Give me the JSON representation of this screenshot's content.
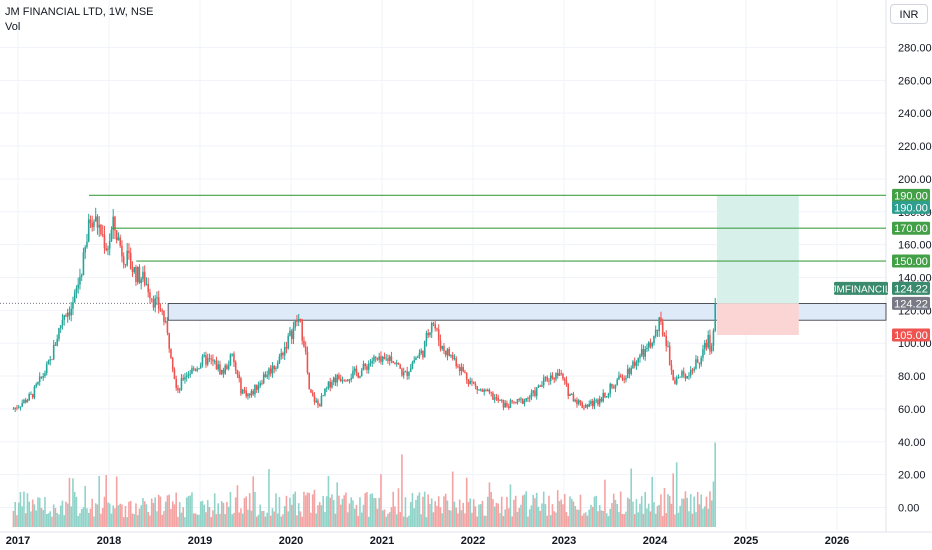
{
  "header": {
    "title": "JM FINANCIAL LTD, 1W, NSE",
    "subtitle": "Vol"
  },
  "currency_button": "INR",
  "colors": {
    "up": "#26a69a",
    "down": "#ef5350",
    "level_line": "#43a047",
    "zone_fill": "#dfeaf9",
    "target_fill": "#d7f0ea",
    "stop_fill": "#fbd4d4",
    "price_tag": "#3a8a6e"
  },
  "chart_data": {
    "type": "candlestick",
    "title": "JM FINANCIAL LTD, 1W, NSE",
    "xlabel": "",
    "ylabel": "",
    "x_ticks": [
      "2017",
      "2018",
      "2019",
      "2020",
      "2021",
      "2022",
      "2023",
      "2024",
      "2025",
      "2026"
    ],
    "y_ticks": [
      "0.00",
      "20.00",
      "40.00",
      "60.00",
      "80.00",
      "100.00",
      "120.00",
      "140.00",
      "160.00",
      "180.00",
      "200.00",
      "220.00",
      "240.00",
      "260.00",
      "280.00"
    ],
    "ylim": [
      -14,
      290
    ],
    "price_path": [
      [
        2016.95,
        60
      ],
      [
        2017.15,
        68
      ],
      [
        2017.35,
        88
      ],
      [
        2017.5,
        118
      ],
      [
        2017.6,
        122
      ],
      [
        2017.72,
        150
      ],
      [
        2017.8,
        178
      ],
      [
        2017.88,
        172
      ],
      [
        2017.98,
        158
      ],
      [
        2018.05,
        172
      ],
      [
        2018.15,
        155
      ],
      [
        2018.3,
        142
      ],
      [
        2018.4,
        138
      ],
      [
        2018.5,
        125
      ],
      [
        2018.58,
        120
      ],
      [
        2018.68,
        95
      ],
      [
        2018.75,
        68
      ],
      [
        2018.82,
        80
      ],
      [
        2018.95,
        85
      ],
      [
        2019.05,
        90
      ],
      [
        2019.15,
        88
      ],
      [
        2019.25,
        82
      ],
      [
        2019.35,
        92
      ],
      [
        2019.45,
        72
      ],
      [
        2019.55,
        68
      ],
      [
        2019.7,
        80
      ],
      [
        2019.85,
        88
      ],
      [
        2019.95,
        100
      ],
      [
        2020.08,
        115
      ],
      [
        2020.15,
        100
      ],
      [
        2020.2,
        70
      ],
      [
        2020.3,
        62
      ],
      [
        2020.45,
        78
      ],
      [
        2020.6,
        80
      ],
      [
        2020.75,
        82
      ],
      [
        2020.9,
        90
      ],
      [
        2021.0,
        88
      ],
      [
        2021.1,
        92
      ],
      [
        2021.25,
        80
      ],
      [
        2021.35,
        90
      ],
      [
        2021.45,
        95
      ],
      [
        2021.55,
        115
      ],
      [
        2021.65,
        98
      ],
      [
        2021.8,
        90
      ],
      [
        2021.95,
        78
      ],
      [
        2022.05,
        72
      ],
      [
        2022.2,
        68
      ],
      [
        2022.35,
        62
      ],
      [
        2022.5,
        64
      ],
      [
        2022.65,
        68
      ],
      [
        2022.8,
        78
      ],
      [
        2022.95,
        82
      ],
      [
        2023.05,
        70
      ],
      [
        2023.2,
        62
      ],
      [
        2023.35,
        64
      ],
      [
        2023.5,
        72
      ],
      [
        2023.65,
        80
      ],
      [
        2023.8,
        90
      ],
      [
        2023.95,
        98
      ],
      [
        2024.05,
        112
      ],
      [
        2024.12,
        103
      ],
      [
        2024.2,
        78
      ],
      [
        2024.3,
        80
      ],
      [
        2024.4,
        84
      ],
      [
        2024.5,
        90
      ],
      [
        2024.58,
        102
      ],
      [
        2024.62,
        96
      ],
      [
        2024.66,
        122
      ],
      [
        2024.68,
        124.22
      ]
    ],
    "series": [
      {
        "name": "Vol",
        "type": "bar"
      }
    ],
    "volume_spikes": [
      [
        2024.66,
        65
      ],
      [
        2024.64,
        35
      ],
      [
        2024.5,
        25
      ],
      [
        2024.1,
        30
      ],
      [
        2024.05,
        17
      ],
      [
        2023.65,
        10
      ],
      [
        2023.95,
        12
      ],
      [
        2021.55,
        22
      ],
      [
        2020.95,
        14
      ],
      [
        2020.1,
        12
      ]
    ],
    "annotations": {
      "horizontal_levels": [
        {
          "value": 190,
          "label": "190.00",
          "from_x": 2017.78
        },
        {
          "value": 170,
          "label": "170.00",
          "from_x": 2018.03
        },
        {
          "value": 150,
          "label": "150.00",
          "from_x": 2018.3
        }
      ],
      "resistance_zone": {
        "from": 114,
        "to": 124.22,
        "from_x": 2018.65
      },
      "position": {
        "entry": 124.22,
        "target": 190,
        "stop": 105,
        "x_start": 2024.68,
        "x_end": 2025.58
      },
      "price_labels": [
        {
          "text": "190.00",
          "value": 190,
          "style": "green-dark"
        },
        {
          "text": "190.00",
          "value": 190,
          "style": "teal"
        },
        {
          "text": "170.00",
          "value": 170,
          "style": "green"
        },
        {
          "text": "150.00",
          "value": 150,
          "style": "green"
        },
        {
          "text": "124.22",
          "value": 124.22,
          "style": "grey"
        },
        {
          "text": "105.00",
          "value": 105,
          "style": "red"
        }
      ],
      "symbol_tag": {
        "name": "JMFINANCIL",
        "value": "124.22"
      }
    }
  }
}
